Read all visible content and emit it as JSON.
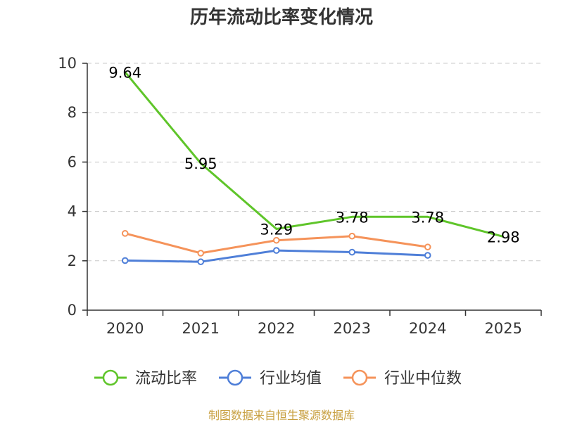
{
  "chart_data": {
    "type": "line",
    "title": "历年流动比率变化情况",
    "categories": [
      "2020",
      "2021",
      "2022",
      "2023",
      "2024",
      "2025"
    ],
    "ylim": [
      0,
      10
    ],
    "yticks": [
      0,
      2,
      4,
      6,
      8,
      10
    ],
    "grid": true,
    "legend_position": "bottom",
    "series": [
      {
        "name": "流动比率",
        "color": "#5fc52a",
        "values": [
          9.64,
          5.95,
          3.29,
          3.78,
          3.78,
          2.98
        ],
        "labels": [
          "9.64",
          "5.95",
          "3.29",
          "3.78",
          "3.78",
          "2.98"
        ],
        "show_labels": true
      },
      {
        "name": "行业均值",
        "color": "#4f7fd8",
        "values": [
          2.01,
          1.96,
          2.42,
          2.35,
          2.22,
          null
        ],
        "show_labels": false
      },
      {
        "name": "行业中位数",
        "color": "#f5935a",
        "values": [
          3.11,
          2.31,
          2.83,
          3.0,
          2.56,
          null
        ],
        "show_labels": false
      }
    ],
    "source": "制图数据来自恒生聚源数据库"
  }
}
